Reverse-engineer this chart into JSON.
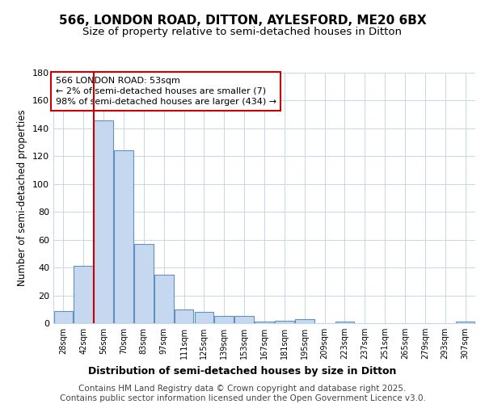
{
  "title1": "566, LONDON ROAD, DITTON, AYLESFORD, ME20 6BX",
  "title2": "Size of property relative to semi-detached houses in Ditton",
  "xlabel": "Distribution of semi-detached houses by size in Ditton",
  "ylabel": "Number of semi-detached properties",
  "categories": [
    "28sqm",
    "42sqm",
    "56sqm",
    "70sqm",
    "83sqm",
    "97sqm",
    "111sqm",
    "125sqm",
    "139sqm",
    "153sqm",
    "167sqm",
    "181sqm",
    "195sqm",
    "209sqm",
    "223sqm",
    "237sqm",
    "251sqm",
    "265sqm",
    "279sqm",
    "293sqm",
    "307sqm"
  ],
  "values": [
    9,
    41,
    146,
    124,
    57,
    35,
    10,
    8,
    5,
    5,
    1,
    2,
    3,
    0,
    1,
    0,
    0,
    0,
    0,
    0,
    1
  ],
  "bar_color": "#c5d8f0",
  "bar_edge_color": "#6090c0",
  "vline_x": 1.5,
  "vline_color": "#cc0000",
  "annotation_text": "566 LONDON ROAD: 53sqm\n← 2% of semi-detached houses are smaller (7)\n98% of semi-detached houses are larger (434) →",
  "annotation_box_edgecolor": "#cc0000",
  "annotation_box_facecolor": "#ffffff",
  "ylim": [
    0,
    180
  ],
  "yticks": [
    0,
    20,
    40,
    60,
    80,
    100,
    120,
    140,
    160,
    180
  ],
  "footer_text": "Contains HM Land Registry data © Crown copyright and database right 2025.\nContains public sector information licensed under the Open Government Licence v3.0.",
  "bg_color": "#ffffff",
  "plot_bg_color": "#ffffff",
  "grid_color": "#c8d4e8",
  "title1_fontsize": 11,
  "title2_fontsize": 9.5,
  "xlabel_fontsize": 9,
  "ylabel_fontsize": 8.5,
  "footer_fontsize": 7.5
}
